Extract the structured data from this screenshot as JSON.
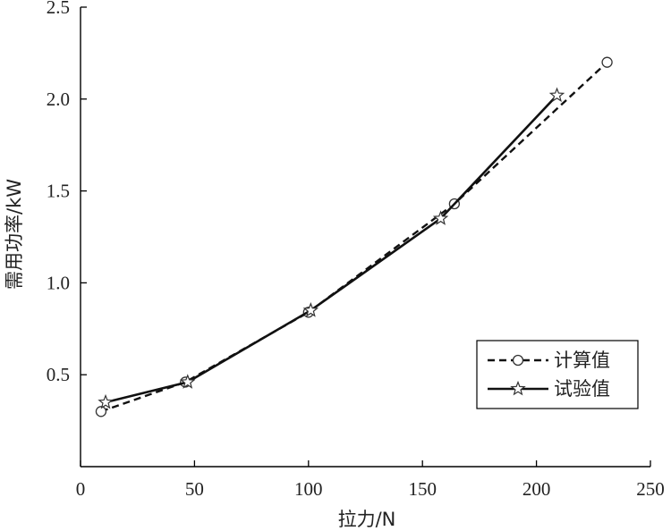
{
  "chart_data": {
    "type": "line",
    "xlabel": "拉力/N",
    "ylabel": "需用功率/kW",
    "xlim": [
      0,
      250
    ],
    "ylim": [
      0,
      2.5
    ],
    "xticks": [
      "0",
      "50",
      "100",
      "150",
      "200",
      "250"
    ],
    "yticks": [
      "0.5",
      "1.0",
      "1.5",
      "2.0",
      "2.5"
    ],
    "grid": false,
    "legend_position": "bottom-right",
    "series": [
      {
        "name": "计算值",
        "line_style": "dashed",
        "marker": "circle",
        "points": [
          [
            9,
            0.3
          ],
          [
            46,
            0.46
          ],
          [
            100,
            0.84
          ],
          [
            164,
            1.43
          ],
          [
            231,
            2.2
          ]
        ]
      },
      {
        "name": "试验值",
        "line_style": "solid",
        "marker": "star",
        "points": [
          [
            11,
            0.35
          ],
          [
            47,
            0.46
          ],
          [
            101,
            0.85
          ],
          [
            158,
            1.35
          ],
          [
            209,
            2.02
          ]
        ]
      }
    ]
  }
}
